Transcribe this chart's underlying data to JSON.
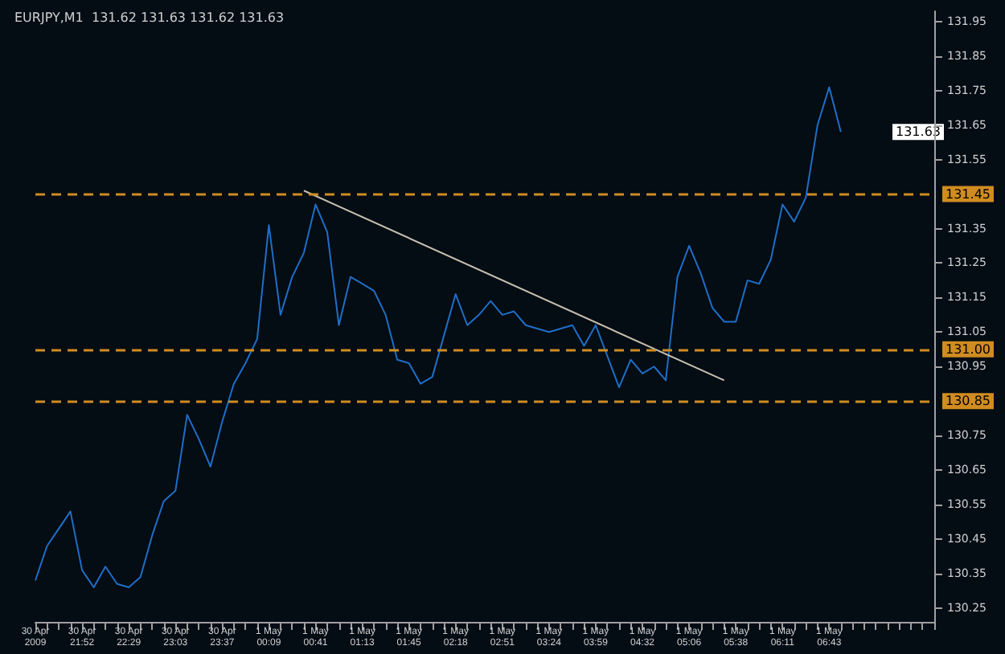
{
  "chart_data": {
    "type": "line",
    "title": "EURJPY,M1  131.62 131.63 131.62 131.63",
    "categories": [
      "30 Apr 2009",
      null,
      null,
      null,
      "30 Apr 21:52",
      null,
      null,
      null,
      "30 Apr 22:29",
      null,
      null,
      null,
      "30 Apr 23:03",
      null,
      null,
      null,
      "30 Apr 23:37",
      null,
      null,
      null,
      "1 May 00:09",
      null,
      null,
      null,
      "1 May 00:41",
      null,
      null,
      null,
      "1 May 01:13",
      null,
      null,
      null,
      "1 May 01:45",
      null,
      null,
      null,
      "1 May 02:18",
      null,
      null,
      null,
      "1 May 02:51",
      null,
      null,
      null,
      "1 May 03:24",
      null,
      null,
      null,
      "1 May 03:59",
      null,
      null,
      null,
      "1 May 04:32",
      null,
      null,
      null,
      "1 May 05:06",
      null,
      null,
      null,
      "1 May 05:38",
      null,
      null,
      null,
      "1 May 06:11",
      null,
      null,
      null,
      "1 May 06:43",
      null,
      null,
      null,
      null,
      null,
      null,
      null,
      null,
      null
    ],
    "series": [
      {
        "color": "#1e6fc8",
        "values": [
          130.33,
          130.43,
          130.48,
          130.53,
          130.36,
          130.31,
          130.37,
          130.32,
          130.31,
          130.34,
          130.46,
          130.56,
          130.59,
          130.81,
          130.74,
          130.66,
          130.79,
          130.9,
          130.96,
          131.03,
          131.36,
          131.1,
          131.21,
          131.28,
          131.42,
          131.34,
          131.07,
          131.21,
          131.19,
          131.17,
          131.1,
          130.97,
          130.96,
          130.9,
          130.92,
          131.04,
          131.16,
          131.07,
          131.1,
          131.14,
          131.1,
          131.11,
          131.07,
          131.06,
          131.05,
          131.06,
          131.07,
          131.01,
          131.07,
          130.98,
          130.89,
          130.97,
          130.93,
          130.95,
          130.91,
          131.21,
          131.3,
          131.22,
          131.12,
          131.08,
          131.08,
          131.2,
          131.19,
          131.26,
          131.42,
          131.37,
          131.44,
          131.65,
          131.76,
          131.63,
          null,
          null,
          null,
          null,
          null,
          null,
          null,
          null
        ]
      },
      {
        "type": "line",
        "color": "#c8c0b0",
        "values": [
          null,
          null,
          null,
          null,
          null,
          null,
          null,
          null,
          null,
          null,
          null,
          null,
          null,
          null,
          null,
          null,
          null,
          null,
          null,
          null,
          null,
          null,
          null,
          131.46,
          null,
          null,
          null,
          null,
          null,
          null,
          null,
          null,
          null,
          null,
          null,
          null,
          null,
          null,
          null,
          null,
          null,
          null,
          null,
          null,
          null,
          null,
          null,
          null,
          null,
          null,
          null,
          null,
          null,
          null,
          null,
          null,
          null,
          null,
          null,
          130.91,
          null,
          null,
          null,
          null,
          null,
          null,
          null,
          null,
          null,
          null,
          null,
          null,
          null,
          null,
          null,
          null,
          null,
          null
        ]
      }
    ],
    "ylim": [
      130.21,
      131.98
    ],
    "yticks": [
      131.95,
      131.85,
      131.75,
      131.65,
      131.55,
      131.35,
      131.25,
      131.15,
      131.05,
      130.95,
      130.75,
      130.65,
      130.55,
      130.45,
      130.35,
      130.25
    ],
    "ref_lines": [
      {
        "axis": "y",
        "value": 131.45,
        "label": "131.45",
        "color": "#d08c20",
        "line_style": "dashed"
      },
      {
        "axis": "y",
        "value": 131.0,
        "label": "131.00",
        "color": "#d08c20",
        "line_style": "dashed"
      },
      {
        "axis": "y",
        "value": 130.85,
        "label": "130.85",
        "color": "#d08c20",
        "line_style": "dashed"
      }
    ],
    "annotations": [
      {
        "text": "131.63",
        "y": 131.63
      }
    ],
    "grid": false,
    "marker": "none"
  }
}
